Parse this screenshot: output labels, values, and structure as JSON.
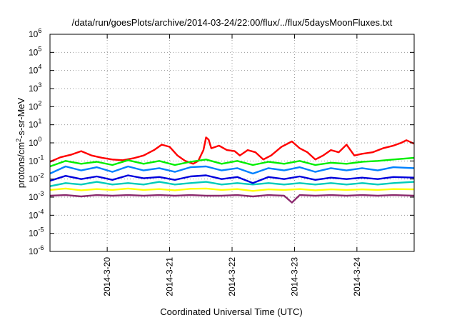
{
  "chart_data": {
    "type": "line",
    "title": "/data/run/goesPlots/archive/2014-03-24/22:00/flux/../flux/5daysMoonFluxes.txt",
    "xlabel": "Coordinated Universal Time (UTC)",
    "ylabel": "protons/cm²-s-sr-MeV",
    "yscale": "log",
    "ylim": [
      1e-06,
      1000000.0
    ],
    "xlim": [
      "2014-03-19T02:00",
      "2014-03-24T22:00"
    ],
    "grid": true,
    "legend": "none",
    "y_ticks": [
      {
        "value": 1e-06,
        "base": "10",
        "exp": "-6"
      },
      {
        "value": 1e-05,
        "base": "10",
        "exp": "-5"
      },
      {
        "value": 0.0001,
        "base": "10",
        "exp": "-4"
      },
      {
        "value": 0.001,
        "base": "10",
        "exp": "-3"
      },
      {
        "value": 0.01,
        "base": "10",
        "exp": "-2"
      },
      {
        "value": 0.1,
        "base": "10",
        "exp": "-1"
      },
      {
        "value": 1,
        "base": "10",
        "exp": "0"
      },
      {
        "value": 10,
        "base": "10",
        "exp": "1"
      },
      {
        "value": 100,
        "base": "10",
        "exp": "2"
      },
      {
        "value": 1000,
        "base": "10",
        "exp": "3"
      },
      {
        "value": 10000,
        "base": "10",
        "exp": "4"
      },
      {
        "value": 100000,
        "base": "10",
        "exp": "5"
      },
      {
        "value": 1000000,
        "base": "10",
        "exp": "6"
      }
    ],
    "x_ticks": [
      {
        "value": "2014-03-20T00:00",
        "label": "2014-3-20"
      },
      {
        "value": "2014-03-21T00:00",
        "label": "2014-3-21"
      },
      {
        "value": "2014-03-22T00:00",
        "label": "2014-3-22"
      },
      {
        "value": "2014-03-23T00:00",
        "label": "2014-3-23"
      },
      {
        "value": "2014-03-24T00:00",
        "label": "2014-3-24"
      }
    ],
    "series": [
      {
        "color": "#ff0000",
        "points": [
          [
            "2014-03-19T02:00",
            0.09
          ],
          [
            "2014-03-19T06:00",
            0.16
          ],
          [
            "2014-03-19T10:00",
            0.22
          ],
          [
            "2014-03-19T14:00",
            0.35
          ],
          [
            "2014-03-19T18:00",
            0.2
          ],
          [
            "2014-03-19T22:00",
            0.15
          ],
          [
            "2014-03-20T02:00",
            0.12
          ],
          [
            "2014-03-20T06:00",
            0.11
          ],
          [
            "2014-03-20T10:00",
            0.14
          ],
          [
            "2014-03-20T14:00",
            0.2
          ],
          [
            "2014-03-20T18:00",
            0.4
          ],
          [
            "2014-03-20T21:00",
            0.8
          ],
          [
            "2014-03-21T00:00",
            0.6
          ],
          [
            "2014-03-21T03:00",
            0.2
          ],
          [
            "2014-03-21T06:00",
            0.1
          ],
          [
            "2014-03-21T09:00",
            0.07
          ],
          [
            "2014-03-21T11:00",
            0.1
          ],
          [
            "2014-03-21T13:00",
            0.4
          ],
          [
            "2014-03-21T14:00",
            2.0
          ],
          [
            "2014-03-21T15:00",
            1.5
          ],
          [
            "2014-03-21T16:00",
            0.5
          ],
          [
            "2014-03-21T19:00",
            0.7
          ],
          [
            "2014-03-21T22:00",
            0.4
          ],
          [
            "2014-03-22T01:00",
            0.35
          ],
          [
            "2014-03-22T03:00",
            0.2
          ],
          [
            "2014-03-22T06:00",
            0.4
          ],
          [
            "2014-03-22T09:00",
            0.3
          ],
          [
            "2014-03-22T12:00",
            0.12
          ],
          [
            "2014-03-22T15:00",
            0.2
          ],
          [
            "2014-03-22T19:00",
            0.6
          ],
          [
            "2014-03-22T23:00",
            1.2
          ],
          [
            "2014-03-23T02:00",
            0.5
          ],
          [
            "2014-03-23T05:00",
            0.3
          ],
          [
            "2014-03-23T08:00",
            0.12
          ],
          [
            "2014-03-23T11:00",
            0.2
          ],
          [
            "2014-03-23T14:00",
            0.4
          ],
          [
            "2014-03-23T17:00",
            0.3
          ],
          [
            "2014-03-23T20:00",
            0.8
          ],
          [
            "2014-03-23T23:00",
            0.2
          ],
          [
            "2014-03-24T02:00",
            0.25
          ],
          [
            "2014-03-24T06:00",
            0.3
          ],
          [
            "2014-03-24T10:00",
            0.5
          ],
          [
            "2014-03-24T14:00",
            0.7
          ],
          [
            "2014-03-24T17:00",
            1.0
          ],
          [
            "2014-03-24T19:00",
            1.4
          ],
          [
            "2014-03-24T22:00",
            0.9
          ]
        ]
      },
      {
        "color": "#00ee00",
        "points": [
          [
            "2014-03-19T02:00",
            0.05
          ],
          [
            "2014-03-19T08:00",
            0.1
          ],
          [
            "2014-03-19T14:00",
            0.07
          ],
          [
            "2014-03-19T20:00",
            0.09
          ],
          [
            "2014-03-20T02:00",
            0.06
          ],
          [
            "2014-03-20T08:00",
            0.11
          ],
          [
            "2014-03-20T14:00",
            0.07
          ],
          [
            "2014-03-20T20:00",
            0.1
          ],
          [
            "2014-03-21T02:00",
            0.06
          ],
          [
            "2014-03-21T08:00",
            0.09
          ],
          [
            "2014-03-21T14:00",
            0.12
          ],
          [
            "2014-03-21T20:00",
            0.07
          ],
          [
            "2014-03-22T02:00",
            0.1
          ],
          [
            "2014-03-22T08:00",
            0.06
          ],
          [
            "2014-03-22T14:00",
            0.09
          ],
          [
            "2014-03-22T20:00",
            0.07
          ],
          [
            "2014-03-23T02:00",
            0.1
          ],
          [
            "2014-03-23T08:00",
            0.06
          ],
          [
            "2014-03-23T14:00",
            0.08
          ],
          [
            "2014-03-23T20:00",
            0.07
          ],
          [
            "2014-03-24T02:00",
            0.09
          ],
          [
            "2014-03-24T08:00",
            0.1
          ],
          [
            "2014-03-24T14:00",
            0.12
          ],
          [
            "2014-03-24T22:00",
            0.15
          ]
        ]
      },
      {
        "color": "#00ccbb",
        "points": [
          [
            "2014-03-19T02:00",
            0.004
          ],
          [
            "2014-03-19T08:00",
            0.006
          ],
          [
            "2014-03-19T14:00",
            0.005
          ],
          [
            "2014-03-19T20:00",
            0.007
          ],
          [
            "2014-03-20T02:00",
            0.005
          ],
          [
            "2014-03-20T08:00",
            0.006
          ],
          [
            "2014-03-20T14:00",
            0.005
          ],
          [
            "2014-03-20T20:00",
            0.007
          ],
          [
            "2014-03-21T02:00",
            0.005
          ],
          [
            "2014-03-21T08:00",
            0.006
          ],
          [
            "2014-03-21T14:00",
            0.007
          ],
          [
            "2014-03-21T20:00",
            0.005
          ],
          [
            "2014-03-22T02:00",
            0.006
          ],
          [
            "2014-03-22T08:00",
            0.005
          ],
          [
            "2014-03-22T14:00",
            0.006
          ],
          [
            "2014-03-22T20:00",
            0.005
          ],
          [
            "2014-03-23T02:00",
            0.006
          ],
          [
            "2014-03-23T08:00",
            0.005
          ],
          [
            "2014-03-23T14:00",
            0.006
          ],
          [
            "2014-03-23T20:00",
            0.005
          ],
          [
            "2014-03-24T02:00",
            0.006
          ],
          [
            "2014-03-24T08:00",
            0.005
          ],
          [
            "2014-03-24T14:00",
            0.006
          ],
          [
            "2014-03-24T22:00",
            0.007
          ]
        ]
      },
      {
        "color": "#0080ff",
        "points": [
          [
            "2014-03-19T02:00",
            0.02
          ],
          [
            "2014-03-19T08:00",
            0.05
          ],
          [
            "2014-03-19T14:00",
            0.03
          ],
          [
            "2014-03-19T20:00",
            0.045
          ],
          [
            "2014-03-20T02:00",
            0.025
          ],
          [
            "2014-03-20T08:00",
            0.05
          ],
          [
            "2014-03-20T14:00",
            0.03
          ],
          [
            "2014-03-20T20:00",
            0.04
          ],
          [
            "2014-03-21T02:00",
            0.025
          ],
          [
            "2014-03-21T08:00",
            0.045
          ],
          [
            "2014-03-21T14:00",
            0.05
          ],
          [
            "2014-03-21T20:00",
            0.03
          ],
          [
            "2014-03-22T02:00",
            0.04
          ],
          [
            "2014-03-22T08:00",
            0.02
          ],
          [
            "2014-03-22T14:00",
            0.04
          ],
          [
            "2014-03-22T20:00",
            0.03
          ],
          [
            "2014-03-23T02:00",
            0.045
          ],
          [
            "2014-03-23T08:00",
            0.025
          ],
          [
            "2014-03-23T14:00",
            0.04
          ],
          [
            "2014-03-23T20:00",
            0.03
          ],
          [
            "2014-03-24T02:00",
            0.04
          ],
          [
            "2014-03-24T08:00",
            0.03
          ],
          [
            "2014-03-24T14:00",
            0.045
          ],
          [
            "2014-03-24T22:00",
            0.04
          ]
        ]
      },
      {
        "color": "#0000dd",
        "points": [
          [
            "2014-03-19T02:00",
            0.008
          ],
          [
            "2014-03-19T08:00",
            0.015
          ],
          [
            "2014-03-19T14:00",
            0.01
          ],
          [
            "2014-03-19T20:00",
            0.014
          ],
          [
            "2014-03-20T02:00",
            0.009
          ],
          [
            "2014-03-20T08:00",
            0.016
          ],
          [
            "2014-03-20T14:00",
            0.011
          ],
          [
            "2014-03-20T20:00",
            0.013
          ],
          [
            "2014-03-21T02:00",
            0.009
          ],
          [
            "2014-03-21T08:00",
            0.014
          ],
          [
            "2014-03-21T14:00",
            0.016
          ],
          [
            "2014-03-21T20:00",
            0.01
          ],
          [
            "2014-03-22T02:00",
            0.013
          ],
          [
            "2014-03-22T08:00",
            0.006
          ],
          [
            "2014-03-22T14:00",
            0.013
          ],
          [
            "2014-03-22T20:00",
            0.01
          ],
          [
            "2014-03-23T02:00",
            0.014
          ],
          [
            "2014-03-23T08:00",
            0.009
          ],
          [
            "2014-03-23T14:00",
            0.012
          ],
          [
            "2014-03-23T20:00",
            0.01
          ],
          [
            "2014-03-24T02:00",
            0.012
          ],
          [
            "2014-03-24T08:00",
            0.01
          ],
          [
            "2014-03-24T14:00",
            0.013
          ],
          [
            "2014-03-24T22:00",
            0.012
          ]
        ]
      },
      {
        "color": "#ffff00",
        "points": [
          [
            "2014-03-19T02:00",
            0.0025
          ],
          [
            "2014-03-19T08:00",
            0.003
          ],
          [
            "2014-03-19T14:00",
            0.0024
          ],
          [
            "2014-03-19T20:00",
            0.0028
          ],
          [
            "2014-03-20T02:00",
            0.0025
          ],
          [
            "2014-03-20T08:00",
            0.003
          ],
          [
            "2014-03-20T14:00",
            0.0025
          ],
          [
            "2014-03-20T20:00",
            0.0028
          ],
          [
            "2014-03-21T02:00",
            0.0024
          ],
          [
            "2014-03-21T08:00",
            0.0029
          ],
          [
            "2014-03-21T14:00",
            0.003
          ],
          [
            "2014-03-21T20:00",
            0.0025
          ],
          [
            "2014-03-22T02:00",
            0.0028
          ],
          [
            "2014-03-22T08:00",
            0.0022
          ],
          [
            "2014-03-22T14:00",
            0.0027
          ],
          [
            "2014-03-22T20:00",
            0.0025
          ],
          [
            "2014-03-23T02:00",
            0.0028
          ],
          [
            "2014-03-23T08:00",
            0.0024
          ],
          [
            "2014-03-23T14:00",
            0.0027
          ],
          [
            "2014-03-23T20:00",
            0.0025
          ],
          [
            "2014-03-24T02:00",
            0.0027
          ],
          [
            "2014-03-24T08:00",
            0.0025
          ],
          [
            "2014-03-24T14:00",
            0.0028
          ],
          [
            "2014-03-24T22:00",
            0.0027
          ]
        ]
      },
      {
        "color": "#8b2a6e",
        "points": [
          [
            "2014-03-19T02:00",
            0.0012
          ],
          [
            "2014-03-19T08:00",
            0.0013
          ],
          [
            "2014-03-19T14:00",
            0.0011
          ],
          [
            "2014-03-19T20:00",
            0.0013
          ],
          [
            "2014-03-20T02:00",
            0.0012
          ],
          [
            "2014-03-20T08:00",
            0.0013
          ],
          [
            "2014-03-20T14:00",
            0.0012
          ],
          [
            "2014-03-20T20:00",
            0.0013
          ],
          [
            "2014-03-21T02:00",
            0.0012
          ],
          [
            "2014-03-21T08:00",
            0.0013
          ],
          [
            "2014-03-21T14:00",
            0.0012
          ],
          [
            "2014-03-21T20:00",
            0.0012
          ],
          [
            "2014-03-22T02:00",
            0.0013
          ],
          [
            "2014-03-22T08:00",
            0.0011
          ],
          [
            "2014-03-22T14:00",
            0.0013
          ],
          [
            "2014-03-22T20:00",
            0.0012
          ],
          [
            "2014-03-22T23:00",
            0.0005
          ],
          [
            "2014-03-23T02:00",
            0.0013
          ],
          [
            "2014-03-23T08:00",
            0.0012
          ],
          [
            "2014-03-23T14:00",
            0.0013
          ],
          [
            "2014-03-23T20:00",
            0.0012
          ],
          [
            "2014-03-24T02:00",
            0.0013
          ],
          [
            "2014-03-24T08:00",
            0.0012
          ],
          [
            "2014-03-24T14:00",
            0.0013
          ],
          [
            "2014-03-24T22:00",
            0.0012
          ]
        ]
      }
    ]
  }
}
